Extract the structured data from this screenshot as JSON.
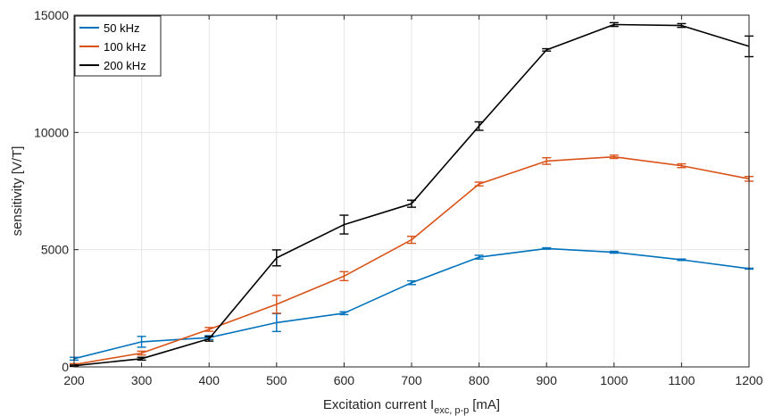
{
  "chart_data": {
    "type": "line",
    "title": "",
    "xlabel": {
      "main": "Excitation current I",
      "sub": "exc, p-p",
      "unit": "[mA]"
    },
    "ylabel": "sensitivity [V/T]",
    "xlim": [
      200,
      1200
    ],
    "ylim": [
      0,
      15000
    ],
    "xticks": [
      200,
      300,
      400,
      500,
      600,
      700,
      800,
      900,
      1000,
      1100,
      1200
    ],
    "xtick_labels": [
      "200",
      "300",
      "400",
      "500",
      "600",
      "700",
      "800",
      "900",
      "1000",
      "1100",
      "1200"
    ],
    "yticks": [
      0,
      5000,
      10000,
      15000
    ],
    "ytick_labels": [
      "0",
      "5000",
      "10000",
      "15000"
    ],
    "grid": true,
    "legend_position": "top-left",
    "x": [
      200,
      300,
      400,
      500,
      600,
      700,
      800,
      900,
      1000,
      1100,
      1200
    ],
    "series": [
      {
        "name": "50 kHz",
        "color": "#0072BD",
        "values": [
          350,
          1070,
          1250,
          1890,
          2290,
          3590,
          4680,
          5050,
          4890,
          4570,
          4190
        ],
        "errors": [
          60,
          230,
          80,
          380,
          60,
          80,
          80,
          30,
          40,
          30,
          20
        ]
      },
      {
        "name": "100 kHz",
        "color": "#D95319",
        "values": [
          100,
          590,
          1600,
          2670,
          3870,
          5420,
          7800,
          8780,
          8960,
          8580,
          8020
        ],
        "errors": [
          40,
          80,
          80,
          380,
          190,
          150,
          80,
          140,
          70,
          80,
          100
        ]
      },
      {
        "name": "200 kHz",
        "color": "#000000",
        "values": [
          50,
          350,
          1200,
          4650,
          6070,
          6960,
          10270,
          13520,
          14600,
          14560,
          13670
        ],
        "errors": [
          30,
          60,
          100,
          340,
          400,
          150,
          180,
          50,
          80,
          80,
          440
        ]
      }
    ]
  }
}
